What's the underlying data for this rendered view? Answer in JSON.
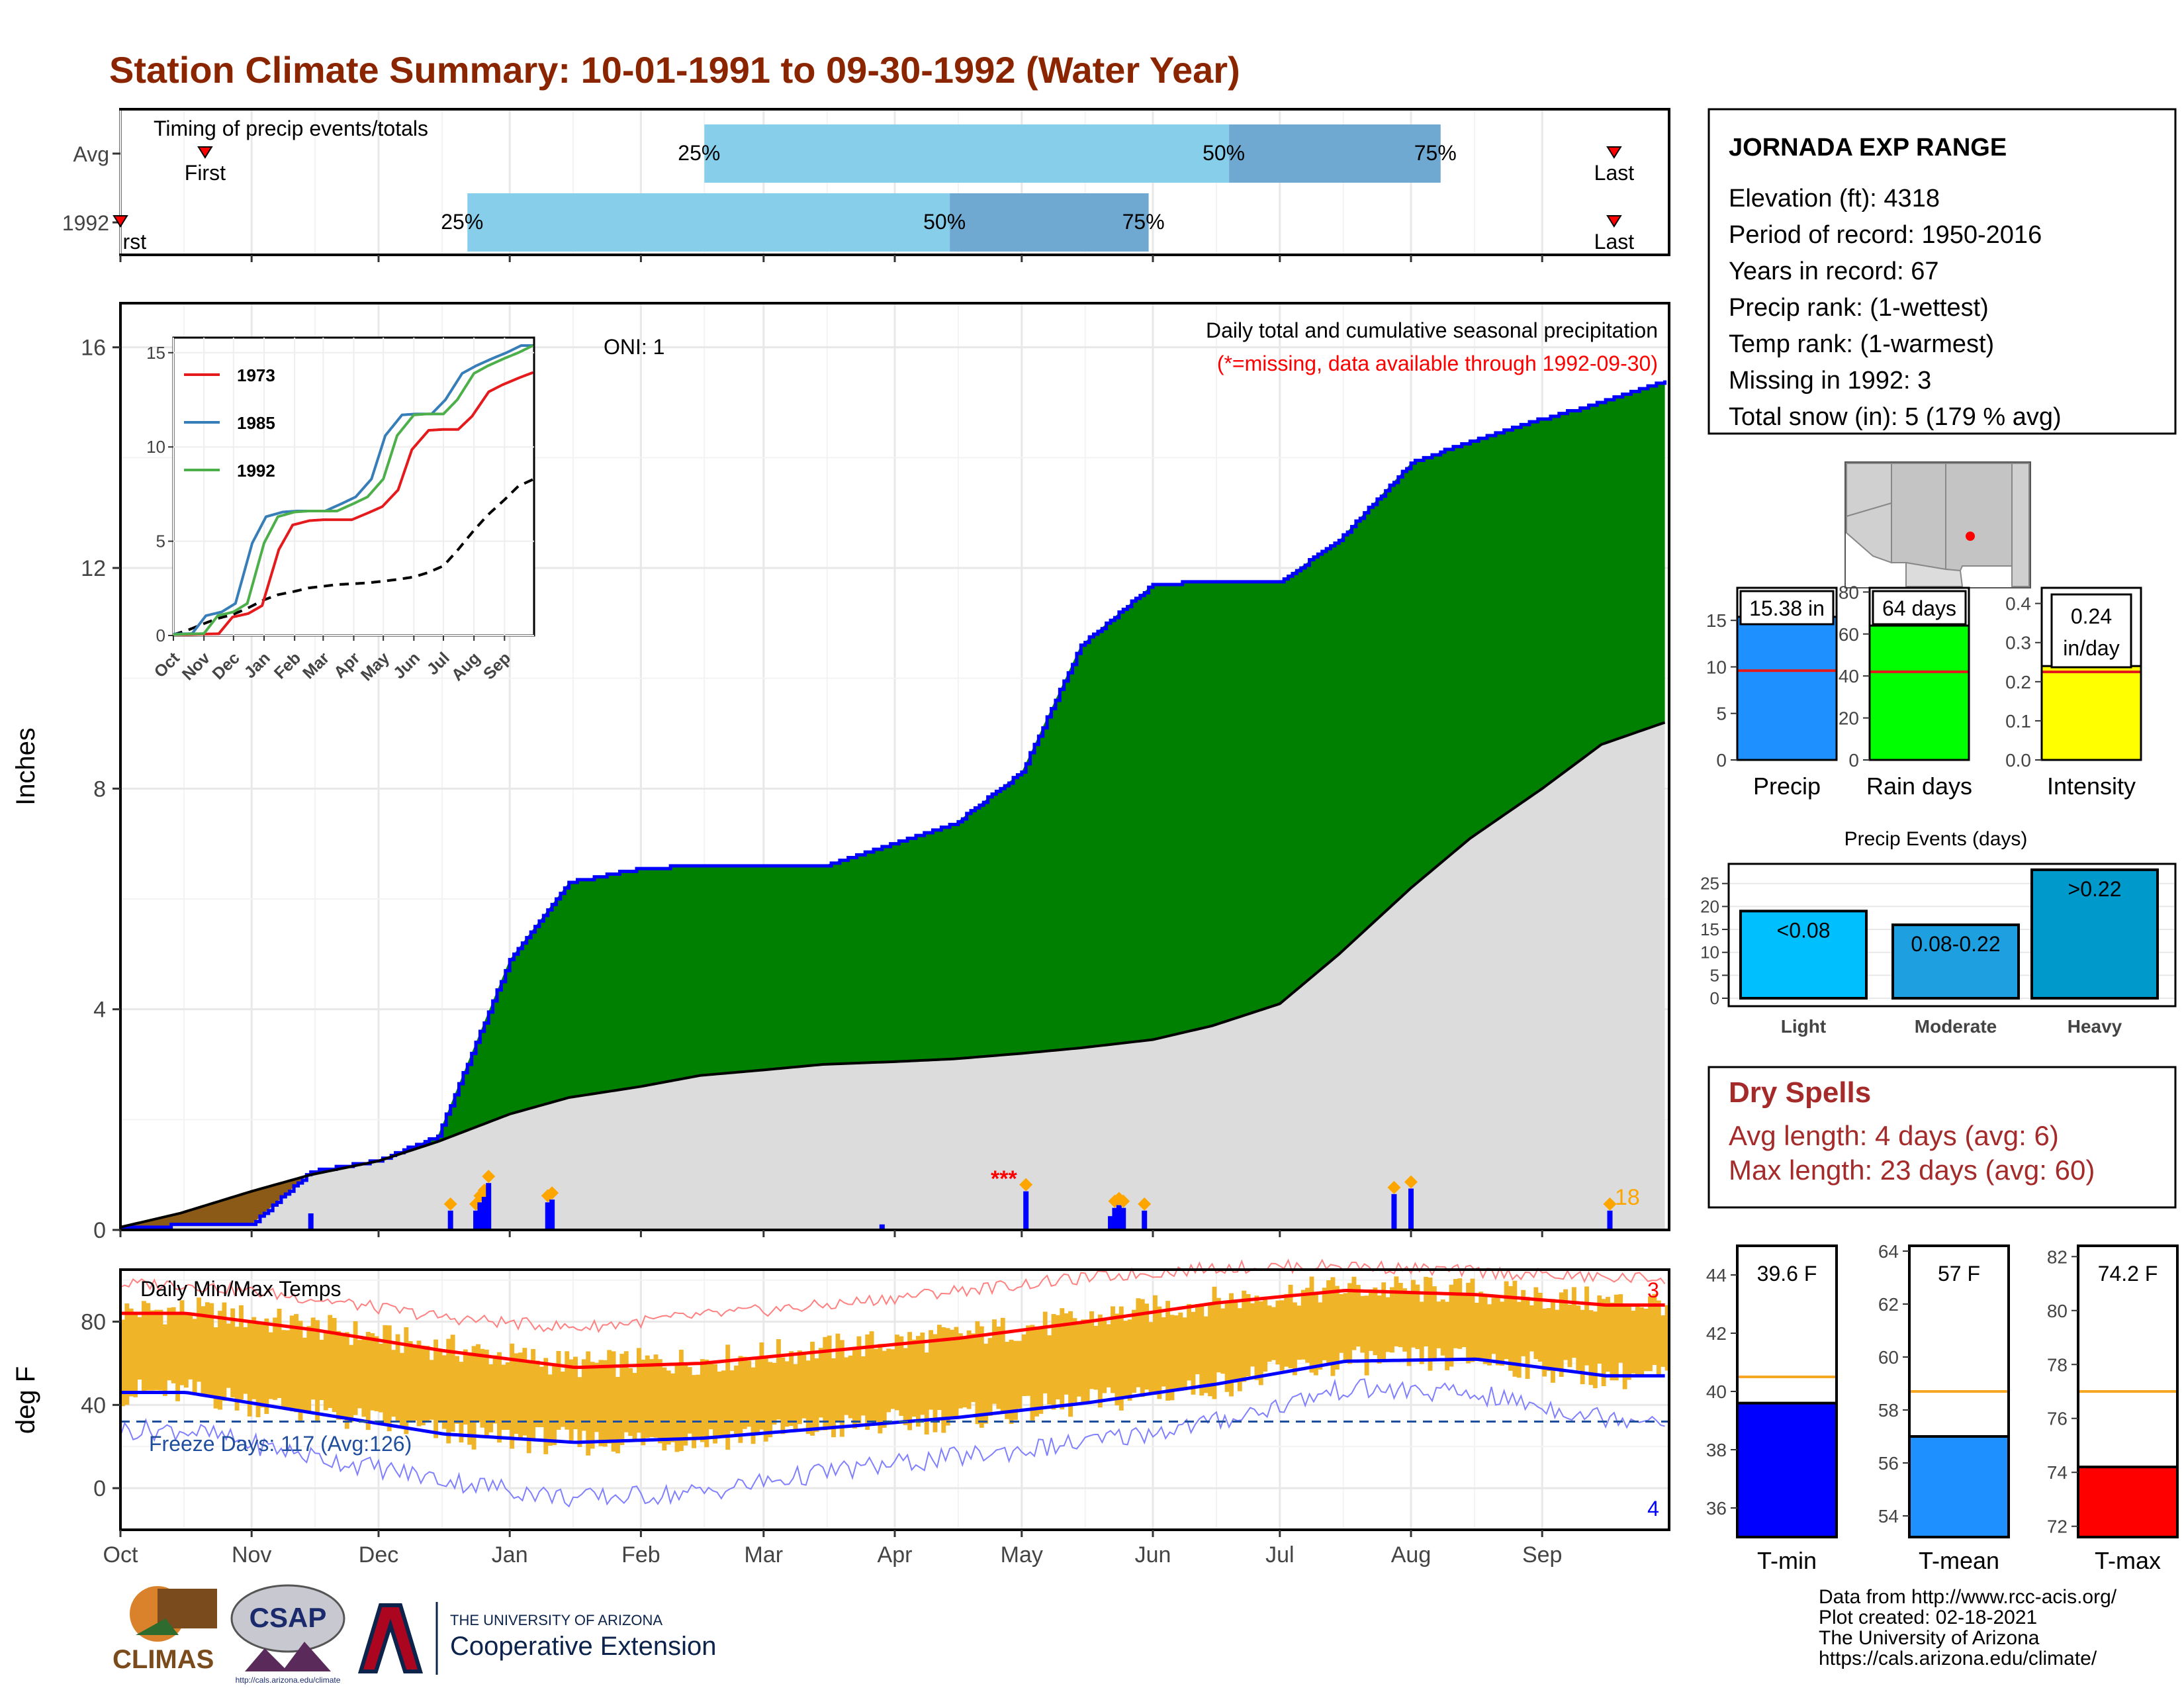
{
  "title": "Station Climate Summary: 10-01-1991 to 09-30-1992 (Water Year)",
  "timing": {
    "panel_title": "Timing of precip events/totals",
    "rows": [
      {
        "label": "Avg",
        "q25": "25%",
        "q50": "50%",
        "q75": "75%",
        "first": "First",
        "last": "Last",
        "first_day": 20,
        "q25_day": 138,
        "q50_day": 262,
        "q75_day": 312,
        "last_day": 353
      },
      {
        "label": "1992",
        "q25": "25%",
        "q50": "50%",
        "q75": "75%",
        "first": "First",
        "last": "Last",
        "first_day": 0,
        "q25_day": 82,
        "q50_day": 196,
        "q75_day": 243,
        "last_day": 353
      }
    ]
  },
  "main_panel": {
    "ylabel": "Inches",
    "oni": "ONI: 1",
    "caption": "Daily total and cumulative seasonal precipitation",
    "missing_note": "(*=missing, data available through 1992-09-30)",
    "missing_marker": "***",
    "count_label": "18",
    "yticks": [
      "0",
      "4",
      "8",
      "12",
      "16"
    ]
  },
  "inset": {
    "yticks": [
      "0",
      "5",
      "10",
      "15"
    ],
    "months": [
      "Oct",
      "Nov",
      "Dec",
      "Jan",
      "Feb",
      "Mar",
      "Apr",
      "May",
      "Jun",
      "Jul",
      "Aug",
      "Sep"
    ],
    "legend": [
      {
        "year": "1973",
        "color": "#e41a1c"
      },
      {
        "year": "1985",
        "color": "#377eb8"
      },
      {
        "year": "1992",
        "color": "#4daf4a"
      }
    ]
  },
  "temp_panel": {
    "ylabel": "deg F",
    "title": "Daily Min/Max Temps",
    "freeze": "Freeze Days: 117 (Avg:126)",
    "top_count": "3",
    "bottom_count": "4",
    "yticks": [
      "0",
      "40",
      "80"
    ]
  },
  "months": [
    "Oct",
    "Nov",
    "Dec",
    "Jan",
    "Feb",
    "Mar",
    "Apr",
    "May",
    "Jun",
    "Jul",
    "Aug",
    "Sep"
  ],
  "station": {
    "name": "JORNADA EXP RANGE",
    "lines": [
      "Elevation (ft): 4318",
      "Period of record: 1950-2016",
      "Years in record: 67",
      "Precip rank:  (1-wettest)",
      "Temp rank:  (1-warmest)",
      "Missing in 1992: 3",
      "Total snow (in): 5 (179 % avg)"
    ]
  },
  "mini_bars": [
    {
      "label": "Precip",
      "value_text": "15.38 in",
      "value": 15.38,
      "avg": 9.6,
      "ymax": 18.5,
      "ymin": 0,
      "ticks": [
        "0",
        "5",
        "10",
        "15"
      ],
      "tick_vals": [
        0,
        5,
        10,
        15
      ],
      "color": "#1e90ff"
    },
    {
      "label": "Rain days",
      "value_text": "64 days",
      "value": 64,
      "avg": 42,
      "ymax": 82,
      "ymin": 0,
      "ticks": [
        "0",
        "20",
        "40",
        "60",
        "80"
      ],
      "tick_vals": [
        0,
        20,
        40,
        60,
        80
      ],
      "color": "#00ff00"
    },
    {
      "label": "Intensity",
      "value_text": "0.24",
      "value_text2": "in/day",
      "value": 0.24,
      "avg": 0.225,
      "ymax": 0.44,
      "ymin": 0,
      "ticks": [
        "0.0",
        "0.1",
        "0.2",
        "0.3",
        "0.4"
      ],
      "tick_vals": [
        0,
        0.1,
        0.2,
        0.3,
        0.4
      ],
      "color": "#ffff00"
    }
  ],
  "precip_events": {
    "title": "Precip Events (days)",
    "categories": [
      "Light",
      "Moderate",
      "Heavy"
    ],
    "bar_labels": [
      "<0.08",
      "0.08-0.22",
      ">0.22"
    ],
    "values": [
      19,
      16,
      28
    ],
    "colors": [
      "#00bfff",
      "#1ea0e0",
      "#0099cc"
    ],
    "ticks": [
      "0",
      "5",
      "10",
      "15",
      "20",
      "25"
    ],
    "ymax": 29
  },
  "dry_spells": {
    "title": "Dry Spells",
    "avg": "Avg length: 4 days (avg: 6)",
    "max": "Max length: 23 days (avg: 60)"
  },
  "temp_bars": [
    {
      "label": "T-min",
      "value_text": "39.6 F",
      "value": 39.6,
      "avg": 40.5,
      "ymin": 35,
      "ymax": 45,
      "ticks": [
        "36",
        "38",
        "40",
        "42",
        "44"
      ],
      "tick_vals": [
        36,
        38,
        40,
        42,
        44
      ],
      "color": "#0000ff"
    },
    {
      "label": "T-mean",
      "value_text": "57 F",
      "value": 57,
      "avg": 58.7,
      "ymin": 53.2,
      "ymax": 64.2,
      "ticks": [
        "54",
        "56",
        "58",
        "60",
        "62",
        "64"
      ],
      "tick_vals": [
        54,
        56,
        58,
        60,
        62,
        64
      ],
      "color": "#1e90ff"
    },
    {
      "label": "T-max",
      "value_text": "74.2 F",
      "value": 74.2,
      "avg": 77,
      "ymin": 71.6,
      "ymax": 82.4,
      "ticks": [
        "72",
        "74",
        "76",
        "78",
        "80",
        "82"
      ],
      "tick_vals": [
        72,
        74,
        76,
        78,
        80,
        82
      ],
      "color": "#ff0000"
    }
  ],
  "footer": {
    "lines": [
      "Data from http://www.rcc-acis.org/",
      "Plot created: 02-18-2021",
      "The University of Arizona",
      "https://cals.arizona.edu/climate/"
    ]
  },
  "logos": {
    "climas": "CLIMAS",
    "csap": "CSAP",
    "csap_url": "http://cals.arizona.edu/climate",
    "ua_line1": "THE UNIVERSITY OF ARIZONA",
    "ua_line2": "Cooperative Extension"
  },
  "chart_data": {
    "type": "area",
    "title": "Daily total and cumulative seasonal precipitation",
    "ylabel": "Inches",
    "ylim": [
      0,
      16.8
    ],
    "x": [
      "1991-10-01",
      "1991-10-15",
      "1991-11-01",
      "1991-11-15",
      "1991-12-01",
      "1991-12-15",
      "1992-01-01",
      "1992-01-15",
      "1992-02-01",
      "1992-02-15",
      "1992-03-01",
      "1992-03-15",
      "1992-04-01",
      "1992-04-15",
      "1992-05-01",
      "1992-05-15",
      "1992-06-01",
      "1992-06-15",
      "1992-07-01",
      "1992-07-15",
      "1992-08-01",
      "1992-08-15",
      "1992-09-01",
      "1992-09-15",
      "1992-09-30"
    ],
    "series": [
      {
        "name": "1992",
        "values": [
          0.05,
          0.08,
          0.1,
          1.05,
          1.25,
          1.7,
          4.9,
          6.3,
          6.55,
          6.6,
          6.6,
          6.6,
          7.0,
          7.35,
          8.3,
          10.6,
          11.7,
          11.75,
          11.75,
          12.5,
          13.9,
          14.3,
          14.7,
          15.0,
          15.38
        ]
      },
      {
        "name": "",
        "values": [
          0.05,
          0.3,
          0.7,
          1.0,
          1.25,
          1.6,
          2.1,
          2.4,
          2.6,
          2.8,
          2.9,
          3.0,
          3.05,
          3.1,
          3.2,
          3.3,
          3.45,
          3.7,
          4.1,
          5.0,
          6.2,
          7.1,
          8.0,
          8.8,
          9.2
        ]
      }
    ],
    "daily_x": [
      "1991-11-15",
      "1991-12-18",
      "1991-12-24",
      "1991-12-25",
      "1991-12-26",
      "1991-12-27",
      "1992-01-10",
      "1992-01-11",
      "1992-03-29",
      "1992-05-02",
      "1992-05-22",
      "1992-05-23",
      "1992-05-24",
      "1992-05-25",
      "1992-05-30",
      "1992-07-28",
      "1992-08-01",
      "1992-09-17"
    ],
    "daily_values": [
      0.3,
      0.35,
      0.35,
      0.5,
      0.6,
      0.85,
      0.5,
      0.55,
      0.1,
      0.7,
      0.25,
      0.4,
      0.45,
      0.4,
      0.35,
      0.65,
      0.75,
      0.35
    ],
    "temperature": {
      "title": "Daily Min/Max Temps",
      "ylabel": "deg F",
      "ylim": [
        -20,
        105
      ],
      "months": [
        "Oct",
        "Nov",
        "Dec",
        "Jan",
        "Feb",
        "Mar",
        "Apr",
        "May",
        "Jun",
        "Jul",
        "Aug",
        "Sep"
      ],
      "avg_tmax": [
        84,
        76,
        66,
        58,
        60,
        66,
        72,
        80,
        89,
        95,
        93,
        88
      ],
      "avg_tmin": [
        46,
        36,
        26,
        22,
        24,
        29,
        34,
        41,
        50,
        61,
        62,
        54
      ],
      "record_high": [
        98,
        91,
        82,
        77,
        83,
        88,
        95,
        101,
        106,
        107,
        104,
        101
      ],
      "record_low": [
        28,
        15,
        4,
        -5,
        -2,
        8,
        15,
        22,
        32,
        48,
        45,
        34
      ],
      "freeze_line": 32
    }
  }
}
